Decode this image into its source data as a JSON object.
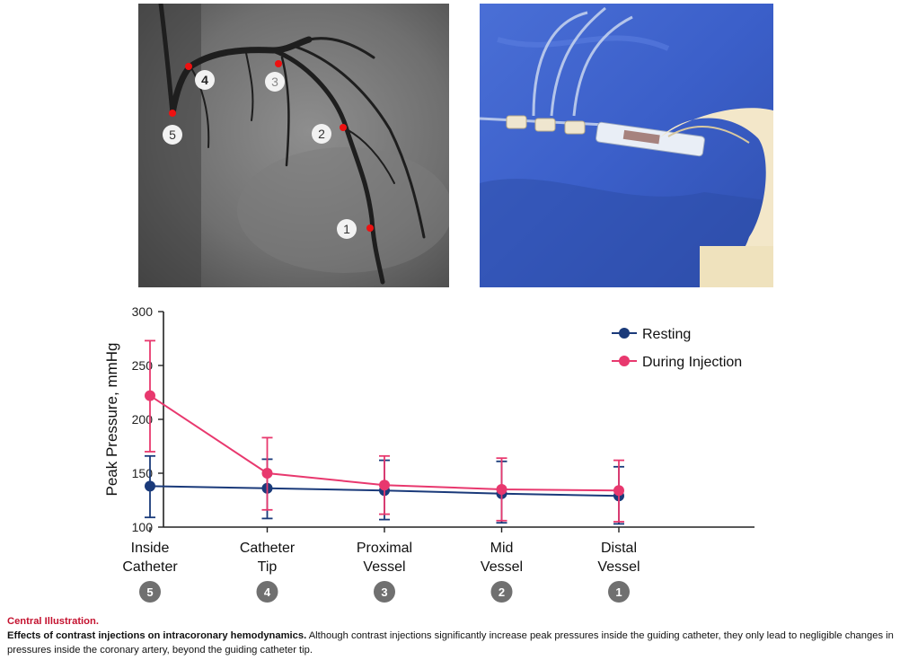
{
  "angiogram": {
    "markers": [
      {
        "label": "1"
      },
      {
        "label": "2"
      },
      {
        "label": "3"
      },
      {
        "label": "4"
      },
      {
        "label": "5"
      }
    ]
  },
  "chart_data": {
    "type": "line",
    "ylabel": "Peak Pressure, mmHg",
    "ylim": [
      100,
      300
    ],
    "yticks": [
      100,
      150,
      200,
      250,
      300
    ],
    "categories": [
      "Inside\nCatheter",
      "Catheter\nTip",
      "Proximal\nVessel",
      "Mid\nVessel",
      "Distal\nVessel"
    ],
    "category_badges": [
      "5",
      "4",
      "3",
      "2",
      "1"
    ],
    "legend_position": "top-right",
    "series": [
      {
        "name": "Resting",
        "color": "#1a3a7a",
        "values": [
          138,
          136,
          134,
          131,
          129
        ],
        "err_low": [
          109,
          108,
          107,
          104,
          103
        ],
        "err_high": [
          166,
          163,
          162,
          161,
          156
        ]
      },
      {
        "name": "During Injection",
        "color": "#e8386e",
        "values": [
          222,
          150,
          139,
          135,
          134
        ],
        "err_low": [
          170,
          116,
          112,
          106,
          105
        ],
        "err_high": [
          273,
          183,
          166,
          164,
          162
        ]
      }
    ]
  },
  "caption": {
    "title": "Central Illustration.",
    "bold": "Effects of contrast injections on intracoronary hemodynamics.",
    "text": " Although contrast injections significantly increase peak pressures inside the guiding catheter, they only lead to negligible changes in pressures inside the coronary artery, beyond the guiding catheter tip."
  }
}
